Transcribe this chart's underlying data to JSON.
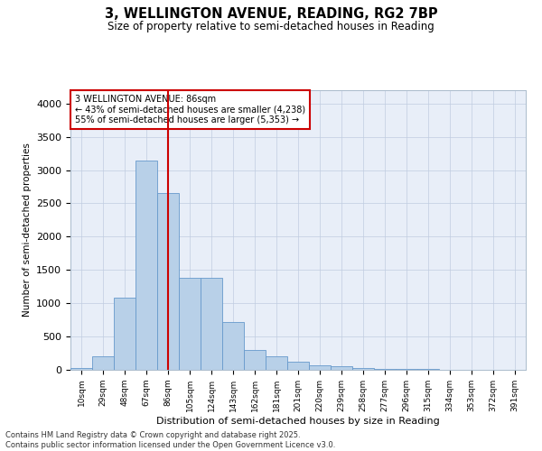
{
  "title_line1": "3, WELLINGTON AVENUE, READING, RG2 7BP",
  "title_line2": "Size of property relative to semi-detached houses in Reading",
  "xlabel": "Distribution of semi-detached houses by size in Reading",
  "ylabel": "Number of semi-detached properties",
  "annotation_title": "3 WELLINGTON AVENUE: 86sqm",
  "annotation_line1": "← 43% of semi-detached houses are smaller (4,238)",
  "annotation_line2": "55% of semi-detached houses are larger (5,353) →",
  "footer_line1": "Contains HM Land Registry data © Crown copyright and database right 2025.",
  "footer_line2": "Contains public sector information licensed under the Open Government Licence v3.0.",
  "bar_color": "#b8d0e8",
  "bar_edge_color": "#6699cc",
  "marker_color": "#cc0000",
  "background_color": "#e8eef8",
  "categories": [
    "10sqm",
    "29sqm",
    "48sqm",
    "67sqm",
    "86sqm",
    "105sqm",
    "124sqm",
    "143sqm",
    "162sqm",
    "181sqm",
    "201sqm",
    "220sqm",
    "239sqm",
    "258sqm",
    "277sqm",
    "296sqm",
    "315sqm",
    "334sqm",
    "353sqm",
    "372sqm",
    "391sqm"
  ],
  "values": [
    30,
    200,
    1080,
    3150,
    2650,
    1380,
    1380,
    720,
    300,
    200,
    125,
    70,
    50,
    30,
    15,
    15,
    8,
    5,
    3,
    2,
    2
  ],
  "marker_index": 4,
  "ylim": [
    0,
    4200
  ],
  "yticks": [
    0,
    500,
    1000,
    1500,
    2000,
    2500,
    3000,
    3500,
    4000
  ]
}
